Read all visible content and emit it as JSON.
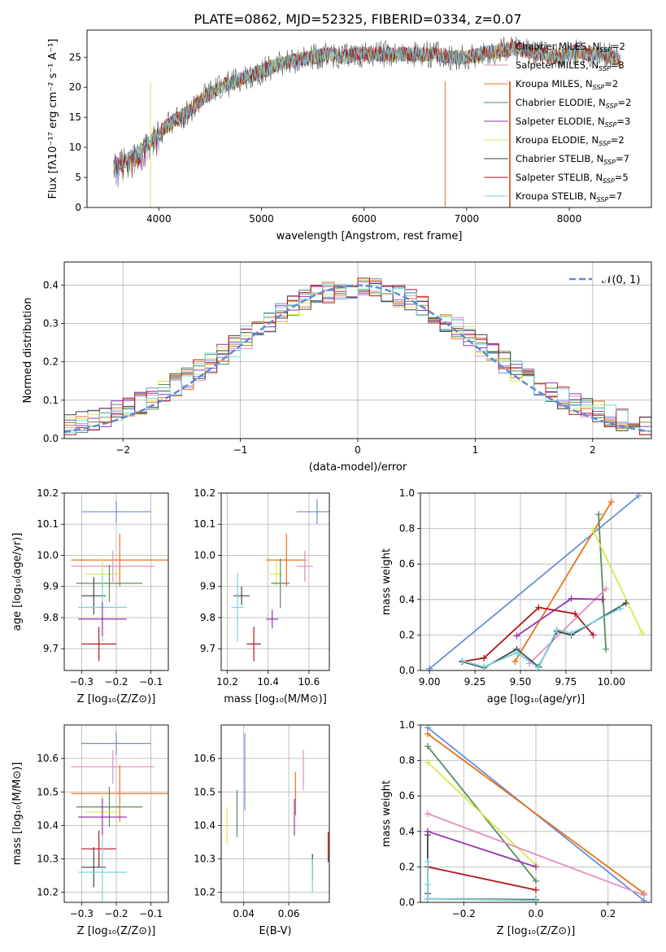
{
  "figure_title": "PLATE=0862, MJD=52325, FIBERID=0334, z=0.07",
  "chart_data": [
    {
      "id": "spectrum",
      "type": "line",
      "xlabel": "wavelength [Angstrom, rest frame]",
      "ylabel": "Flux [fλ10⁻¹⁷ erg cm⁻² s⁻¹ A⁻¹]",
      "xlim": [
        3300,
        8800
      ],
      "ylim": [
        0,
        29.5
      ],
      "xticks": [
        4000,
        5000,
        6000,
        7000,
        8000
      ],
      "yticks": [
        0,
        5,
        10,
        15,
        20,
        25
      ],
      "grid": false,
      "legend_position": "right",
      "envelope": {
        "x": [
          3560,
          3700,
          3850,
          4000,
          4150,
          4300,
          4450,
          4600,
          4750,
          4900,
          5050,
          5200,
          5350,
          5500,
          5650,
          5800,
          5950,
          6100,
          6250,
          6400,
          6550,
          6700,
          6850,
          7000,
          7150,
          7300,
          7450,
          7600,
          7750,
          7900,
          8050,
          8200,
          8350,
          8500
        ],
        "y": [
          7,
          8,
          10,
          12.5,
          14.5,
          16,
          18.5,
          20,
          21,
          22,
          23,
          24,
          24.5,
          25,
          25.5,
          25,
          25.5,
          25.5,
          25.5,
          25.5,
          25.5,
          25.5,
          25,
          25,
          25.5,
          26,
          26.5,
          26,
          25.5,
          25,
          26,
          25.5,
          25.5,
          24.5
        ]
      },
      "series": [
        {
          "name": "Chabrier MILES, N_SSP=2",
          "color": "#6a8fd8"
        },
        {
          "name": "Salpeter MILES, N_SSP=3",
          "color": "#e38fc0"
        },
        {
          "name": "Kroupa MILES, N_SSP=2",
          "color": "#e8721d"
        },
        {
          "name": "Chabrier ELODIE, N_SSP=2",
          "color": "#5c8a5c"
        },
        {
          "name": "Salpeter ELODIE, N_SSP=3",
          "color": "#9a33b5"
        },
        {
          "name": "Kroupa ELODIE, N_SSP=2",
          "color": "#d8e84e"
        },
        {
          "name": "Chabrier STELIB, N_SSP=7",
          "color": "#444444"
        },
        {
          "name": "Salpeter STELIB, N_SSP=5",
          "color": "#b0171b"
        },
        {
          "name": "Kroupa STELIB, N_SSP=7",
          "color": "#78d4dc"
        }
      ]
    },
    {
      "id": "residuals",
      "type": "step",
      "xlabel": "(data-model)/error",
      "ylabel": "Normed distribution",
      "xlim": [
        -2.5,
        2.5
      ],
      "ylim": [
        0,
        0.46
      ],
      "xticks": [
        -2,
        -1,
        0,
        1,
        2
      ],
      "yticks": [
        0.0,
        0.1,
        0.2,
        0.3,
        0.4
      ],
      "grid": true,
      "legend_position": "top-right",
      "legend": "𝒩(0, 1)",
      "normal_curve": {
        "mean": 0,
        "sigma": 1,
        "color": "#5b8bd6"
      },
      "bin_width": 0.1
    },
    {
      "id": "age_vs_Z",
      "type": "errorbar",
      "xlabel": "Z [log₁₀(Z/Z⊙)]",
      "ylabel": "age  [log₁₀(age/yr)]",
      "xlim": [
        -0.35,
        -0.05
      ],
      "ylim": [
        9.63,
        10.2
      ],
      "xticks": [
        -0.3,
        -0.2,
        -0.1
      ],
      "yticks": [
        9.7,
        9.8,
        9.9,
        10.0,
        10.1,
        10.2
      ],
      "points": [
        {
          "color": "#6a8fd8",
          "x": -0.2,
          "xerr": 0.1,
          "y": 10.14,
          "yerr": 0.035
        },
        {
          "color": "#e8721d",
          "x": -0.19,
          "xerr": 0.14,
          "y": 9.985,
          "yerr": 0.085
        },
        {
          "color": "#e38fc0",
          "x": -0.21,
          "xerr": 0.12,
          "y": 9.965,
          "yerr": 0.05
        },
        {
          "color": "#d8e84e",
          "x": -0.24,
          "xerr": 0.05,
          "y": 9.94,
          "yerr": 0.05
        },
        {
          "color": "#5c8a5c",
          "x": -0.22,
          "xerr": 0.095,
          "y": 9.91,
          "yerr": 0.06
        },
        {
          "color": "#444444",
          "x": -0.265,
          "xerr": 0.035,
          "y": 9.87,
          "yerr": 0.06
        },
        {
          "color": "#78d4dc",
          "x": -0.24,
          "xerr": 0.07,
          "y": 9.833,
          "yerr": 0.11
        },
        {
          "color": "#9a33b5",
          "x": -0.24,
          "xerr": 0.07,
          "y": 9.795,
          "yerr": 0.055
        },
        {
          "color": "#b0171b",
          "x": -0.25,
          "xerr": 0.05,
          "y": 9.715,
          "yerr": 0.055
        }
      ]
    },
    {
      "id": "age_vs_mass",
      "type": "errorbar",
      "xlabel": "mass [log₁₀(M/M⊙)]",
      "ylabel": "",
      "xlim": [
        10.17,
        10.7
      ],
      "ylim": [
        9.63,
        10.2
      ],
      "xticks": [
        10.2,
        10.4,
        10.6
      ],
      "yticks": [
        9.7,
        9.8,
        9.9,
        10.0,
        10.1,
        10.2
      ],
      "points": [
        {
          "color": "#6a8fd8",
          "x": 10.64,
          "xerr": 0.1,
          "y": 10.14,
          "yerr": 0.04
        },
        {
          "color": "#e8721d",
          "x": 10.49,
          "xerr": 0.1,
          "y": 9.985,
          "yerr": 0.085
        },
        {
          "color": "#e38fc0",
          "x": 10.58,
          "xerr": 0.04,
          "y": 9.965,
          "yerr": 0.05
        },
        {
          "color": "#d8e84e",
          "x": 10.44,
          "xerr": 0.03,
          "y": 9.94,
          "yerr": 0.04
        },
        {
          "color": "#5c8a5c",
          "x": 10.46,
          "xerr": 0.045,
          "y": 9.91,
          "yerr": 0.08
        },
        {
          "color": "#444444",
          "x": 10.27,
          "xerr": 0.04,
          "y": 9.87,
          "yerr": 0.03
        },
        {
          "color": "#78d4dc",
          "x": 10.25,
          "xerr": 0.03,
          "y": 9.833,
          "yerr": 0.11
        },
        {
          "color": "#9a33b5",
          "x": 10.42,
          "xerr": 0.03,
          "y": 9.795,
          "yerr": 0.03
        },
        {
          "color": "#b0171b",
          "x": 10.33,
          "xerr": 0.035,
          "y": 9.715,
          "yerr": 0.055
        }
      ]
    },
    {
      "id": "weight_vs_age",
      "type": "line",
      "xlabel": "age  [log₁₀(age/yr)]",
      "ylabel": "mass weight",
      "xlim": [
        8.95,
        10.22
      ],
      "ylim": [
        0,
        1
      ],
      "xticks": [
        9.0,
        9.25,
        9.5,
        9.75,
        10.0
      ],
      "yticks": [
        0.0,
        0.2,
        0.4,
        0.6,
        0.8,
        1.0
      ],
      "grid": true,
      "series": [
        {
          "color": "#6a8fd8",
          "x": [
            9.0,
            10.15
          ],
          "y": [
            0.01,
            0.985
          ]
        },
        {
          "color": "#e8721d",
          "x": [
            9.47,
            10.0
          ],
          "y": [
            0.05,
            0.95
          ]
        },
        {
          "color": "#5c8a5c",
          "x": [
            9.93,
            9.97
          ],
          "y": [
            0.88,
            0.12
          ]
        },
        {
          "color": "#d8e84e",
          "x": [
            9.9,
            10.17
          ],
          "y": [
            0.79,
            0.21
          ]
        },
        {
          "color": "#e38fc0",
          "x": [
            9.55,
            9.97
          ],
          "y": [
            0.04,
            0.46
          ]
        },
        {
          "color": "#9a33b5",
          "x": [
            9.48,
            9.78,
            9.95
          ],
          "y": [
            0.195,
            0.405,
            0.4
          ]
        },
        {
          "color": "#b0171b",
          "x": [
            9.18,
            9.3,
            9.6,
            9.8,
            9.9
          ],
          "y": [
            0.05,
            0.07,
            0.355,
            0.32,
            0.2
          ]
        },
        {
          "color": "#444444",
          "x": [
            9.18,
            9.3,
            9.48,
            9.6,
            9.7,
            9.78,
            10.08
          ],
          "y": [
            0.05,
            0.015,
            0.12,
            0.02,
            0.22,
            0.2,
            0.38
          ]
        },
        {
          "color": "#78d4dc",
          "x": [
            9.18,
            9.3,
            9.48,
            9.6,
            9.7,
            9.78,
            10.05
          ],
          "y": [
            0.055,
            0.02,
            0.1,
            0.015,
            0.23,
            0.21,
            0.35
          ]
        }
      ]
    },
    {
      "id": "mass_vs_Z",
      "type": "errorbar",
      "xlabel": "Z [log₁₀(Z/Z⊙)]",
      "ylabel": "mass [log₁₀(M/M⊙)]",
      "xlim": [
        -0.35,
        -0.05
      ],
      "ylim": [
        10.17,
        10.7
      ],
      "xticks": [
        -0.3,
        -0.2,
        -0.1
      ],
      "yticks": [
        10.2,
        10.3,
        10.4,
        10.5,
        10.6
      ],
      "points": [
        {
          "color": "#6a8fd8",
          "x": -0.2,
          "xerr": 0.1,
          "y": 10.645,
          "yerr": 0.035
        },
        {
          "color": "#e38fc0",
          "x": -0.21,
          "xerr": 0.12,
          "y": 10.575,
          "yerr": 0.05
        },
        {
          "color": "#e8721d",
          "x": -0.19,
          "xerr": 0.14,
          "y": 10.495,
          "yerr": 0.085
        },
        {
          "color": "#5c8a5c",
          "x": -0.22,
          "xerr": 0.095,
          "y": 10.455,
          "yerr": 0.06
        },
        {
          "color": "#d8e84e",
          "x": -0.24,
          "xerr": 0.05,
          "y": 10.44,
          "yerr": 0.05
        },
        {
          "color": "#9a33b5",
          "x": -0.24,
          "xerr": 0.07,
          "y": 10.425,
          "yerr": 0.055
        },
        {
          "color": "#b0171b",
          "x": -0.25,
          "xerr": 0.05,
          "y": 10.33,
          "yerr": 0.055
        },
        {
          "color": "#444444",
          "x": -0.265,
          "xerr": 0.035,
          "y": 10.275,
          "yerr": 0.06
        },
        {
          "color": "#78d4dc",
          "x": -0.24,
          "xerr": 0.07,
          "y": 10.26,
          "yerr": 0.11
        }
      ]
    },
    {
      "id": "mass_vs_EBV",
      "type": "errorbar",
      "xlabel": "E(B-V)",
      "ylabel": "",
      "xlim": [
        0.03,
        0.078
      ],
      "ylim": [
        10.17,
        10.7
      ],
      "xticks": [
        0.04,
        0.06
      ],
      "yticks": [
        10.2,
        10.3,
        10.4,
        10.5,
        10.6
      ],
      "points": [
        {
          "color": "#6a8fd8",
          "x": 0.0405,
          "xerr": 0,
          "y": 10.56,
          "yerr": 0.115
        },
        {
          "color": "#e38fc0",
          "x": 0.0665,
          "xerr": 0,
          "y": 10.565,
          "yerr": 0.06
        },
        {
          "color": "#e8721d",
          "x": 0.063,
          "xerr": 0,
          "y": 10.495,
          "yerr": 0.065
        },
        {
          "color": "#5c8a5c",
          "x": 0.037,
          "xerr": 0,
          "y": 10.435,
          "yerr": 0.07
        },
        {
          "color": "#d8e84e",
          "x": 0.0325,
          "xerr": 0,
          "y": 10.4,
          "yerr": 0.055
        },
        {
          "color": "#9a33b5",
          "x": 0.0625,
          "xerr": 0,
          "y": 10.425,
          "yerr": 0.055
        },
        {
          "color": "#b0171b",
          "x": 0.0775,
          "xerr": 0,
          "y": 10.335,
          "yerr": 0.045
        },
        {
          "color": "#444444",
          "x": 0.0705,
          "xerr": 0,
          "y": 10.275,
          "yerr": 0.04
        },
        {
          "color": "#78d4dc",
          "x": 0.0705,
          "xerr": 0,
          "y": 10.25,
          "yerr": 0.05
        }
      ]
    },
    {
      "id": "weight_vs_Z",
      "type": "line",
      "xlabel": "Z [log₁₀(Z/Z⊙)]",
      "ylabel": "mass weight",
      "xlim": [
        -0.32,
        0.32
      ],
      "ylim": [
        0,
        1
      ],
      "xticks": [
        -0.2,
        0.0,
        0.2
      ],
      "yticks": [
        0.0,
        0.2,
        0.4,
        0.6,
        0.8,
        1.0
      ],
      "grid": true,
      "series": [
        {
          "color": "#6a8fd8",
          "x": [
            -0.3,
            0.3
          ],
          "y": [
            0.985,
            0.01
          ]
        },
        {
          "color": "#e8721d",
          "x": [
            -0.3,
            0.3
          ],
          "y": [
            0.95,
            0.05
          ]
        },
        {
          "color": "#5c8a5c",
          "x": [
            -0.3,
            0.0
          ],
          "y": [
            0.88,
            0.12
          ]
        },
        {
          "color": "#d8e84e",
          "x": [
            -0.3,
            0.0
          ],
          "y": [
            0.79,
            0.21
          ]
        },
        {
          "color": "#e38fc0",
          "x": [
            -0.3,
            0.3
          ],
          "y": [
            0.5,
            0.04
          ]
        },
        {
          "color": "#9a33b5",
          "x": [
            -0.3,
            0.0
          ],
          "y": [
            0.4,
            0.2
          ]
        },
        {
          "color": "#b0171b",
          "x": [
            -0.3,
            0.0
          ],
          "y": [
            0.2,
            0.07
          ]
        },
        {
          "color": "#444444",
          "x": [
            -0.3,
            -0.3,
            -0.3,
            0.0
          ],
          "y": [
            0.38,
            0.05,
            0.02,
            0.015
          ]
        },
        {
          "color": "#78d4dc",
          "x": [
            -0.3,
            -0.3,
            -0.3,
            0.0
          ],
          "y": [
            0.23,
            0.1,
            0.02,
            0.01
          ]
        }
      ]
    }
  ]
}
